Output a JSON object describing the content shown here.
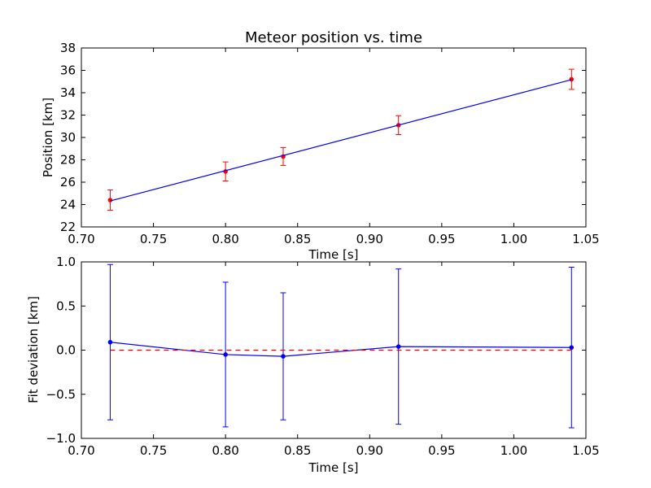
{
  "chart_data": [
    {
      "type": "scatter",
      "title": "Meteor position vs. time",
      "xlabel": "Time [s]",
      "ylabel": "Position [km]",
      "xlim": [
        0.7,
        1.05
      ],
      "ylim": [
        22,
        38
      ],
      "xticks": [
        "0.70",
        "0.75",
        "0.80",
        "0.85",
        "0.90",
        "0.95",
        "1.00",
        "1.05"
      ],
      "yticks": [
        "22",
        "24",
        "26",
        "28",
        "30",
        "32",
        "34",
        "36",
        "38"
      ],
      "grid": false,
      "series": [
        {
          "kind": "points_with_errorbars",
          "color": "#ff0000",
          "points": [
            {
              "x": 0.72,
              "y": 24.4,
              "err": 0.9
            },
            {
              "x": 0.8,
              "y": 26.96,
              "err": 0.85
            },
            {
              "x": 0.84,
              "y": 28.3,
              "err": 0.8
            },
            {
              "x": 0.92,
              "y": 31.1,
              "err": 0.85
            },
            {
              "x": 1.04,
              "y": 35.2,
              "err": 0.9
            }
          ]
        },
        {
          "kind": "fit_line",
          "color": "#0000ff",
          "points": [
            {
              "x": 0.72,
              "y": 24.32
            },
            {
              "x": 1.04,
              "y": 35.17
            }
          ]
        }
      ]
    },
    {
      "type": "line",
      "title": "",
      "xlabel": "Time [s]",
      "ylabel": "Fit deviation [km]",
      "xlim": [
        0.7,
        1.05
      ],
      "ylim": [
        -1.0,
        1.0
      ],
      "xticks": [
        "0.70",
        "0.75",
        "0.80",
        "0.85",
        "0.90",
        "0.95",
        "1.00",
        "1.05"
      ],
      "yticks": [
        "−1.0",
        "−0.5",
        "0.0",
        "0.5",
        "1.0"
      ],
      "grid": false,
      "series": [
        {
          "kind": "line_with_errorbars",
          "color": "#0000ff",
          "points": [
            {
              "x": 0.72,
              "y": 0.09,
              "err": 0.88
            },
            {
              "x": 0.8,
              "y": -0.05,
              "err": 0.82
            },
            {
              "x": 0.84,
              "y": -0.07,
              "err": 0.72
            },
            {
              "x": 0.92,
              "y": 0.04,
              "err": 0.88
            },
            {
              "x": 1.04,
              "y": 0.03,
              "err": 0.91
            }
          ]
        },
        {
          "kind": "reference_line",
          "color": "#ff0000",
          "dashed": true,
          "points": [
            {
              "x": 0.72,
              "y": 0.0
            },
            {
              "x": 1.04,
              "y": 0.0
            }
          ]
        }
      ]
    }
  ]
}
